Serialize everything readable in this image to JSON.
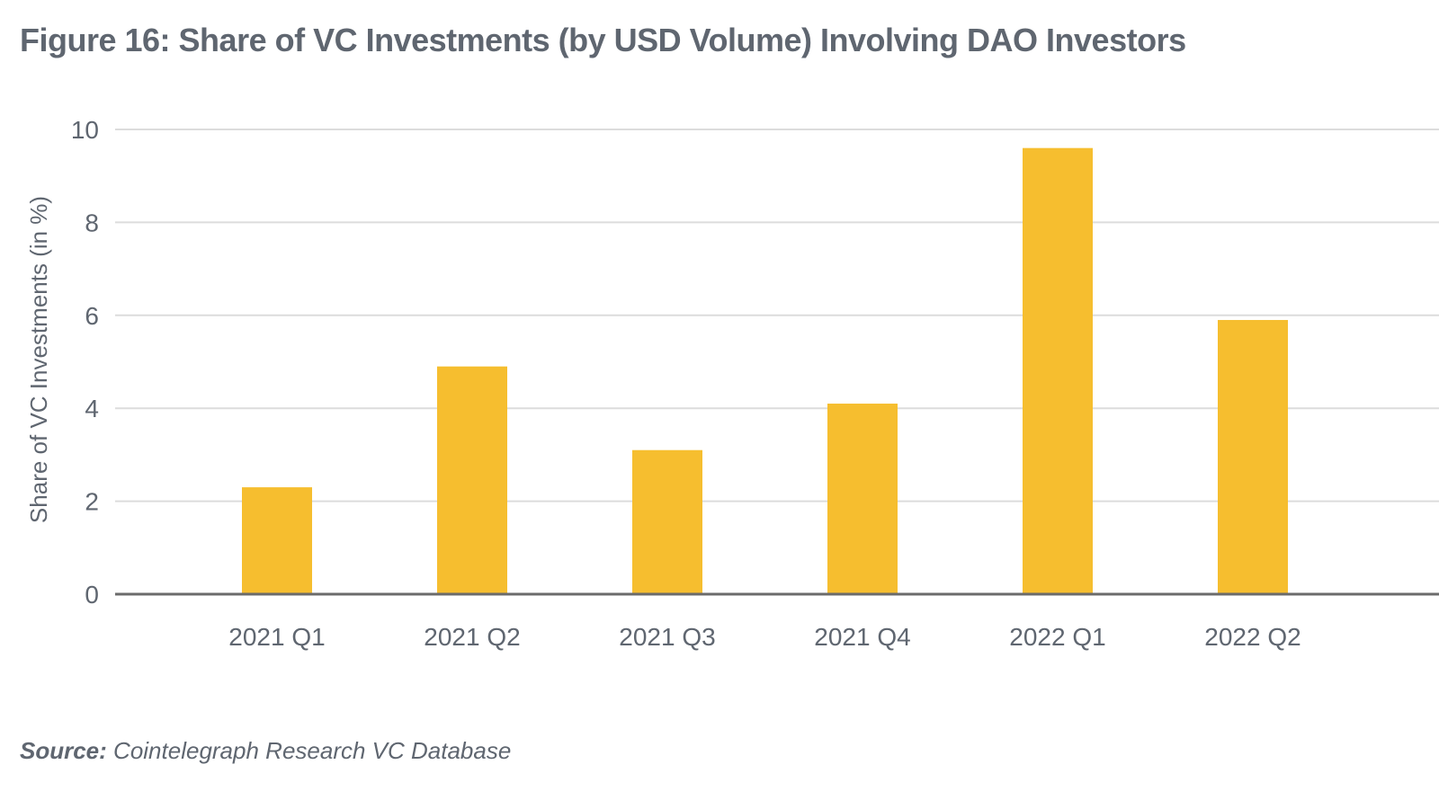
{
  "chart_data": {
    "type": "bar",
    "title": "Figure 16: Share of VC Investments (by USD Volume) Involving DAO Investors",
    "xlabel": "",
    "ylabel": "Share of VC Investments (in %)",
    "categories": [
      "2021 Q1",
      "2021 Q2",
      "2021 Q3",
      "2021 Q4",
      "2022 Q1",
      "2022 Q2"
    ],
    "values": [
      2.3,
      4.9,
      3.1,
      4.1,
      9.6,
      5.9
    ],
    "ylim": [
      0,
      10
    ],
    "yticks": [
      0,
      2,
      4,
      6,
      8,
      10
    ],
    "grid": true,
    "legend": "none"
  },
  "colors": {
    "bar": "#F6BE2F",
    "grid": "#dcdcdc",
    "axis": "#6b6b6b",
    "text": "#5f6670"
  },
  "source": {
    "label": "Source:",
    "text": "Cointelegraph Research VC Database"
  }
}
